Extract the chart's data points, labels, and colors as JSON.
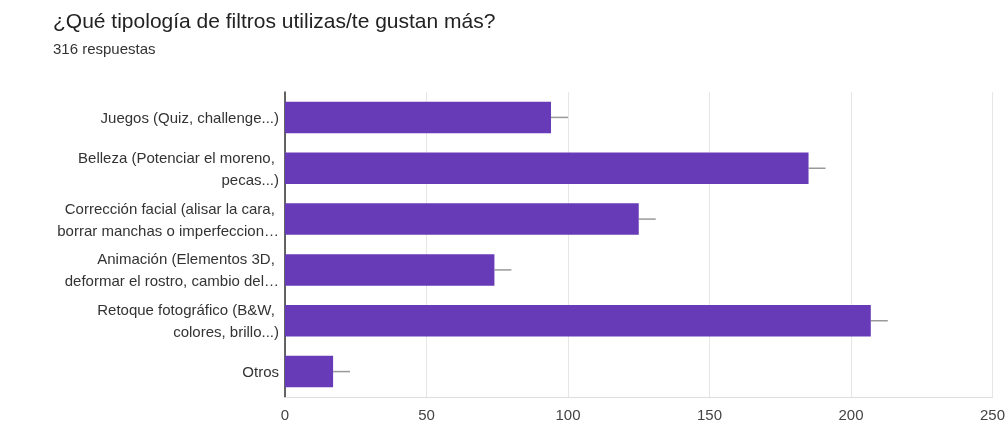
{
  "chart_data": {
    "type": "bar",
    "orientation": "horizontal",
    "title": "¿Qué tipología de filtros utilizas/te gustan más?",
    "subtitle": "316 respuestas",
    "categories": [
      "Juegos (Quiz, challenge...)",
      "Belleza (Potenciar el moreno, pecas...)",
      "Corrección facial (alisar la cara, borrar manchas o imperfeccion…",
      "Animación (Elementos 3D, deformar el rostro, cambio del…",
      "Retoque fotográfico (B&W, colores, brillo...)",
      "Otros"
    ],
    "values": [
      94,
      185,
      125,
      74,
      207,
      17
    ],
    "errors": [
      [
        94,
        100
      ],
      [
        185,
        191
      ],
      [
        125,
        131
      ],
      [
        74,
        80
      ],
      [
        207,
        213
      ],
      [
        17,
        23
      ]
    ],
    "color": "#673ab7",
    "xlim": [
      0,
      250
    ],
    "xticks": [
      0,
      50,
      100,
      150,
      200,
      250
    ],
    "grid": "x"
  }
}
